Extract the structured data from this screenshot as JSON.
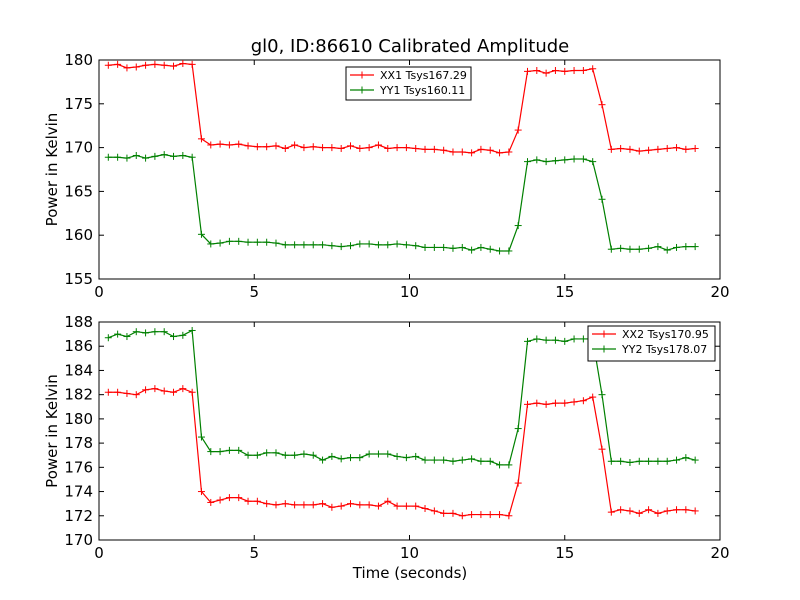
{
  "chart_data": [
    {
      "type": "line",
      "title": "gl0, ID:86610 Calibrated Amplitude",
      "xlabel": "",
      "ylabel": "Power in Kelvin",
      "xlim": [
        0,
        20
      ],
      "ylim": [
        155,
        180
      ],
      "xticks": [
        "0",
        "5",
        "10",
        "15",
        "20"
      ],
      "yticks": [
        "155",
        "160",
        "165",
        "170",
        "175",
        "180"
      ],
      "legend_position": "top-center",
      "x": [
        0.3,
        0.6,
        0.9,
        1.2,
        1.5,
        1.8,
        2.1,
        2.4,
        2.7,
        3.0,
        3.3,
        3.6,
        3.9,
        4.2,
        4.5,
        4.8,
        5.1,
        5.4,
        5.7,
        6.0,
        6.3,
        6.6,
        6.9,
        7.2,
        7.5,
        7.8,
        8.1,
        8.4,
        8.7,
        9.0,
        9.3,
        9.6,
        9.9,
        10.2,
        10.5,
        10.8,
        11.1,
        11.4,
        11.7,
        12.0,
        12.3,
        12.6,
        12.9,
        13.2,
        13.5,
        13.8,
        14.1,
        14.4,
        14.7,
        15.0,
        15.3,
        15.6,
        15.9,
        16.2,
        16.5,
        16.8,
        17.1,
        17.4,
        17.7,
        18.0,
        18.3,
        18.6,
        18.9,
        19.2
      ],
      "series": [
        {
          "name": "XX1 Tsys167.29",
          "color": "#ff0000",
          "values": [
            179.4,
            179.5,
            179.1,
            179.2,
            179.4,
            179.5,
            179.4,
            179.3,
            179.6,
            179.5,
            171.0,
            170.3,
            170.4,
            170.3,
            170.4,
            170.2,
            170.1,
            170.1,
            170.2,
            169.9,
            170.3,
            170.0,
            170.1,
            170.0,
            170.0,
            169.9,
            170.2,
            169.9,
            170.0,
            170.3,
            169.9,
            170.0,
            170.0,
            169.9,
            169.8,
            169.8,
            169.7,
            169.5,
            169.5,
            169.4,
            169.8,
            169.7,
            169.4,
            169.5,
            172.0,
            178.7,
            178.8,
            178.5,
            178.8,
            178.7,
            178.8,
            178.8,
            179.0,
            174.9,
            169.8,
            169.9,
            169.8,
            169.6,
            169.7,
            169.8,
            169.9,
            170.0,
            169.8,
            169.9
          ]
        },
        {
          "name": "YY1 Tsys160.11",
          "color": "#008000",
          "values": [
            168.9,
            168.9,
            168.8,
            169.1,
            168.8,
            169.0,
            169.2,
            169.0,
            169.1,
            168.9,
            160.1,
            159.0,
            159.1,
            159.3,
            159.3,
            159.2,
            159.2,
            159.2,
            159.1,
            158.9,
            158.9,
            158.9,
            158.9,
            158.9,
            158.8,
            158.7,
            158.8,
            159.0,
            159.0,
            158.9,
            158.9,
            159.0,
            158.9,
            158.8,
            158.6,
            158.6,
            158.6,
            158.5,
            158.6,
            158.3,
            158.6,
            158.4,
            158.2,
            158.2,
            161.1,
            168.4,
            168.6,
            168.4,
            168.5,
            168.6,
            168.7,
            168.7,
            168.4,
            164.1,
            158.4,
            158.5,
            158.4,
            158.4,
            158.5,
            158.7,
            158.3,
            158.6,
            158.7,
            158.7
          ]
        }
      ]
    },
    {
      "type": "line",
      "title": "",
      "xlabel": "Time (seconds)",
      "ylabel": "Power in Kelvin",
      "xlim": [
        0,
        20
      ],
      "ylim": [
        170,
        188
      ],
      "xticks": [
        "0",
        "5",
        "10",
        "15",
        "20"
      ],
      "yticks": [
        "170",
        "172",
        "174",
        "176",
        "178",
        "180",
        "182",
        "184",
        "186",
        "188"
      ],
      "legend_position": "top-right",
      "x": [
        0.3,
        0.6,
        0.9,
        1.2,
        1.5,
        1.8,
        2.1,
        2.4,
        2.7,
        3.0,
        3.3,
        3.6,
        3.9,
        4.2,
        4.5,
        4.8,
        5.1,
        5.4,
        5.7,
        6.0,
        6.3,
        6.6,
        6.9,
        7.2,
        7.5,
        7.8,
        8.1,
        8.4,
        8.7,
        9.0,
        9.3,
        9.6,
        9.9,
        10.2,
        10.5,
        10.8,
        11.1,
        11.4,
        11.7,
        12.0,
        12.3,
        12.6,
        12.9,
        13.2,
        13.5,
        13.8,
        14.1,
        14.4,
        14.7,
        15.0,
        15.3,
        15.6,
        15.9,
        16.2,
        16.5,
        16.8,
        17.1,
        17.4,
        17.7,
        18.0,
        18.3,
        18.6,
        18.9,
        19.2
      ],
      "series": [
        {
          "name": "XX2 Tsys170.95",
          "color": "#ff0000",
          "values": [
            182.2,
            182.2,
            182.1,
            182.0,
            182.4,
            182.5,
            182.3,
            182.2,
            182.5,
            182.2,
            174.0,
            173.1,
            173.3,
            173.5,
            173.5,
            173.2,
            173.2,
            173.0,
            172.9,
            173.0,
            172.9,
            172.9,
            172.9,
            173.0,
            172.7,
            172.8,
            173.0,
            172.9,
            172.9,
            172.8,
            173.2,
            172.8,
            172.8,
            172.8,
            172.6,
            172.4,
            172.2,
            172.2,
            172.0,
            172.1,
            172.1,
            172.1,
            172.1,
            172.0,
            174.7,
            181.2,
            181.3,
            181.2,
            181.3,
            181.3,
            181.4,
            181.5,
            181.8,
            177.5,
            172.3,
            172.5,
            172.4,
            172.2,
            172.5,
            172.2,
            172.4,
            172.5,
            172.5,
            172.4
          ]
        },
        {
          "name": "YY2 Tsys178.07",
          "color": "#008000",
          "values": [
            186.7,
            187.0,
            186.8,
            187.2,
            187.1,
            187.2,
            187.2,
            186.8,
            186.9,
            187.3,
            178.5,
            177.3,
            177.3,
            177.4,
            177.4,
            177.0,
            177.0,
            177.2,
            177.2,
            177.0,
            177.0,
            177.1,
            177.0,
            176.6,
            176.9,
            176.7,
            176.8,
            176.8,
            177.1,
            177.1,
            177.1,
            176.9,
            176.8,
            176.9,
            176.6,
            176.6,
            176.6,
            176.5,
            176.6,
            176.7,
            176.5,
            176.5,
            176.2,
            176.2,
            179.2,
            186.4,
            186.6,
            186.5,
            186.5,
            186.4,
            186.6,
            186.6,
            186.6,
            182.0,
            176.5,
            176.5,
            176.4,
            176.5,
            176.5,
            176.5,
            176.5,
            176.6,
            176.8,
            176.6
          ]
        }
      ]
    }
  ]
}
